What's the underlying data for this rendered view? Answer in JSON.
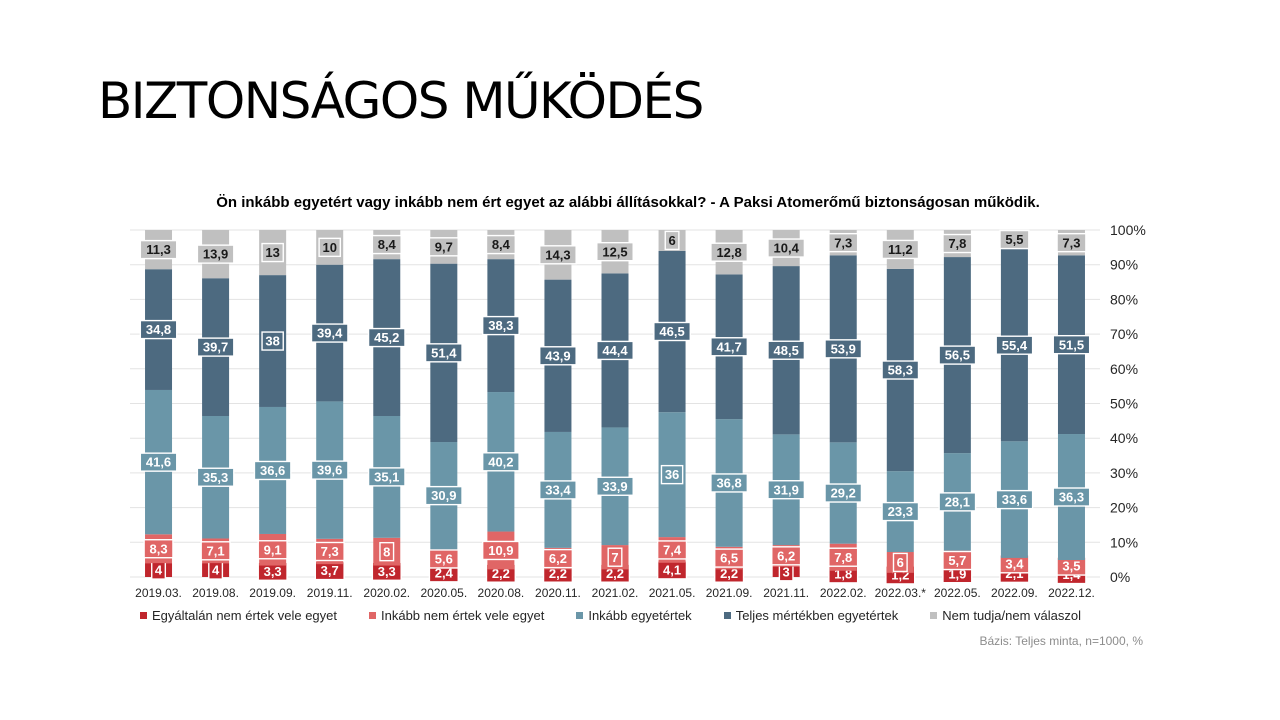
{
  "slide": {
    "title": "BIZTONSÁGOS MŰKÖDÉS"
  },
  "chart_data": {
    "type": "bar",
    "stacked": true,
    "title": "Ön inkább egyetért vagy inkább nem ért egyet az alábbi állításokkal? - A Paksi Atomerőmű biztonságosan működik.",
    "categories": [
      "2019.03.",
      "2019.08.",
      "2019.09.",
      "2019.11.",
      "2020.02.",
      "2020.05.",
      "2020.08.",
      "2020.11.",
      "2021.02.",
      "2021.05.",
      "2021.09.",
      "2021.11.",
      "2022.02.",
      "2022.03.*",
      "2022.05.",
      "2022.09.",
      "2022.12."
    ],
    "series": [
      {
        "name": "Egyáltalán nem értek vele egyet",
        "color": "#c0262d",
        "values": [
          4,
          4,
          3.3,
          3.7,
          3.3,
          2.4,
          2.2,
          2.2,
          2.2,
          4.1,
          2.2,
          3,
          1.8,
          1.2,
          1.9,
          2.1,
          1.4
        ]
      },
      {
        "name": "Inkább nem értek vele egyet",
        "color": "#e06666",
        "values": [
          8.3,
          7.1,
          9.1,
          7.3,
          8,
          5.6,
          10.9,
          6.2,
          7,
          7.4,
          6.5,
          6.2,
          7.8,
          6,
          5.7,
          3.4,
          3.5
        ]
      },
      {
        "name": "Inkább egyetértek",
        "color": "#6a96a8",
        "values": [
          41.6,
          35.3,
          36.6,
          39.6,
          35.1,
          30.9,
          40.2,
          33.4,
          33.9,
          36,
          36.8,
          31.9,
          29.2,
          23.3,
          28.1,
          33.6,
          36.3
        ]
      },
      {
        "name": "Teljes mértékben egyetértek",
        "color": "#4d6a80",
        "values": [
          34.8,
          39.7,
          38,
          39.4,
          45.2,
          51.4,
          38.3,
          43.9,
          44.4,
          46.5,
          41.7,
          48.5,
          53.9,
          58.3,
          56.5,
          55.4,
          51.5
        ]
      },
      {
        "name": "Nem tudja/nem válaszol",
        "color": "#c0c0c0",
        "values": [
          11.3,
          13.9,
          13,
          10,
          8.4,
          9.7,
          8.4,
          14.3,
          12.5,
          6,
          12.8,
          10.4,
          7.3,
          11.2,
          7.8,
          5.5,
          7.3
        ]
      }
    ],
    "value_labels": [
      [
        "4",
        "4",
        "3,3",
        "3,7",
        "3,3",
        "2,4",
        "2,2",
        "2,2",
        "2,2",
        "4,1",
        "2,2",
        "3",
        "1,8",
        "1,2",
        "1,9",
        "2,1",
        "1,4"
      ],
      [
        "8,3",
        "7,1",
        "9,1",
        "7,3",
        "8",
        "5,6",
        "10,9",
        "6,2",
        "7",
        "7,4",
        "6,5",
        "6,2",
        "7,8",
        "6",
        "5,7",
        "3,4",
        "3,5"
      ],
      [
        "41,6",
        "35,3",
        "36,6",
        "39,6",
        "35,1",
        "30,9",
        "40,2",
        "33,4",
        "33,9",
        "36",
        "36,8",
        "31,9",
        "29,2",
        "23,3",
        "28,1",
        "33,6",
        "36,3"
      ],
      [
        "34,8",
        "39,7",
        "38",
        "39,4",
        "45,2",
        "51,4",
        "38,3",
        "43,9",
        "44,4",
        "46,5",
        "41,7",
        "48,5",
        "53,9",
        "58,3",
        "56,5",
        "55,4",
        "51,5"
      ],
      [
        "11,3",
        "13,9",
        "13",
        "10",
        "8,4",
        "9,7",
        "8,4",
        "14,3",
        "12,5",
        "6",
        "12,8",
        "10,4",
        "7,3",
        "11,2",
        "7,8",
        "5,5",
        "7,3"
      ]
    ],
    "y_axis": {
      "position": "right",
      "ylim": [
        0,
        100
      ],
      "tick_labels": [
        "0%",
        "10%",
        "20%",
        "30%",
        "40%",
        "50%",
        "60%",
        "70%",
        "80%",
        "90%",
        "100%"
      ]
    },
    "grid": true,
    "legend_position": "bottom"
  },
  "legend": {
    "items": [
      {
        "label": "Egyáltalán nem értek vele egyet",
        "color": "#c0262d"
      },
      {
        "label": "Inkább nem értek vele egyet",
        "color": "#e06666"
      },
      {
        "label": "Inkább egyetértek",
        "color": "#6a96a8"
      },
      {
        "label": "Teljes mértékben egyetértek",
        "color": "#4d6a80"
      },
      {
        "label": "Nem tudja/nem válaszol",
        "color": "#c0c0c0"
      }
    ]
  },
  "footnote": {
    "base": "Bázis: Teljes minta, n=1000, %"
  }
}
